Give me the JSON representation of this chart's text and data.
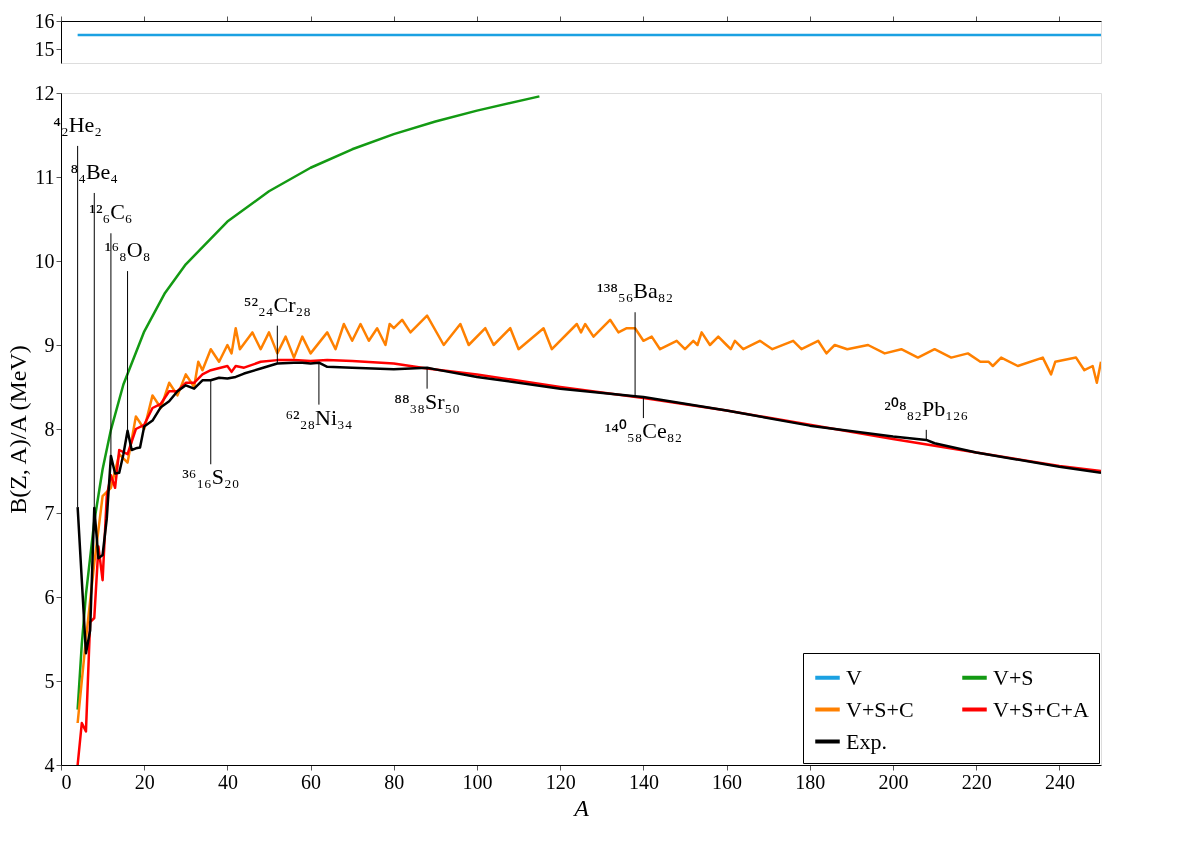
{
  "chart_data": [
    {
      "type": "line",
      "xlim": [
        0,
        250
      ],
      "xticks": [
        0,
        20,
        40,
        60,
        80,
        100,
        120,
        140,
        160,
        180,
        200,
        220,
        240
      ],
      "ylim": [
        14.5,
        16
      ],
      "yticks": [
        15,
        16
      ],
      "tick_labels": "y",
      "grid": false,
      "legend": "bottom right",
      "series": [
        {
          "name": "V",
          "color": "#1ba1e2",
          "x": [
            4,
            250
          ],
          "values": [
            15.5,
            15.5
          ]
        }
      ]
    },
    {
      "type": "line",
      "xlabel": "A",
      "ylabel": "B(Z, A)/A (MeV)",
      "xlim": [
        0,
        250
      ],
      "xticks": [
        0,
        20,
        40,
        60,
        80,
        100,
        120,
        140,
        160,
        180,
        200,
        220,
        240
      ],
      "ylim": [
        4,
        12
      ],
      "yticks": [
        4,
        5,
        6,
        7,
        8,
        9,
        10,
        11,
        12
      ],
      "grid": false,
      "legend": "bottom right",
      "series": [
        {
          "name": "V+S",
          "color": "#139a13",
          "x": [
            4,
            5,
            6,
            8,
            10,
            12,
            15,
            20,
            25,
            30,
            40,
            50,
            60,
            70,
            80,
            90,
            100,
            115
          ],
          "values": [
            4.66,
            5.44,
            6.03,
            6.9,
            7.52,
            7.99,
            8.53,
            9.16,
            9.62,
            9.96,
            10.47,
            10.83,
            11.11,
            11.33,
            11.51,
            11.66,
            11.79,
            11.96
          ]
        },
        {
          "name": "V+S+C",
          "color": "#ff8000",
          "x": [
            4,
            6,
            8,
            10,
            12,
            14,
            16,
            18,
            20,
            22,
            24,
            26,
            28,
            30,
            32,
            33,
            34,
            36,
            38,
            40,
            41,
            42,
            43,
            46,
            48,
            50,
            52,
            54,
            56,
            58,
            60,
            64,
            66,
            68,
            70,
            72,
            74,
            76,
            78,
            79,
            80,
            82,
            84,
            88,
            92,
            96,
            98,
            102,
            104,
            108,
            110,
            116,
            118,
            124,
            125,
            126,
            128,
            132,
            134,
            136,
            138,
            140,
            142,
            144,
            148,
            150,
            152,
            153,
            154,
            156,
            158,
            160,
            161,
            162,
            164,
            168,
            171,
            176,
            178,
            182,
            184,
            185,
            186,
            189,
            194,
            198,
            202,
            206,
            210,
            214,
            218,
            221,
            223,
            224,
            226,
            230,
            236,
            238,
            239,
            244,
            246,
            248,
            249,
            250
          ],
          "values": [
            4.5,
            5.5,
            6.4,
            7.2,
            7.3,
            7.7,
            7.6,
            8.15,
            8.0,
            8.4,
            8.25,
            8.55,
            8.4,
            8.65,
            8.5,
            8.8,
            8.7,
            8.95,
            8.8,
            9.0,
            8.9,
            9.2,
            8.95,
            9.15,
            8.95,
            9.15,
            8.9,
            9.1,
            8.85,
            9.1,
            8.9,
            9.15,
            8.95,
            9.25,
            9.05,
            9.25,
            9.05,
            9.2,
            9.0,
            9.25,
            9.2,
            9.3,
            9.15,
            9.35,
            9.0,
            9.25,
            9.0,
            9.2,
            9.0,
            9.2,
            8.95,
            9.2,
            8.95,
            9.25,
            9.15,
            9.25,
            9.1,
            9.3,
            9.15,
            9.2,
            9.2,
            9.05,
            9.1,
            8.95,
            9.05,
            8.95,
            9.05,
            9.0,
            9.15,
            9.0,
            9.1,
            9.0,
            8.95,
            9.05,
            8.95,
            9.05,
            8.95,
            9.05,
            8.95,
            9.05,
            8.9,
            8.95,
            9.0,
            8.95,
            9.0,
            8.9,
            8.95,
            8.85,
            8.95,
            8.85,
            8.9,
            8.8,
            8.8,
            8.75,
            8.85,
            8.75,
            8.85,
            8.65,
            8.8,
            8.85,
            8.7,
            8.75,
            8.55,
            8.8
          ]
        },
        {
          "name": "V+S+C+A",
          "color": "#ff0000",
          "x": [
            4,
            5,
            6,
            7,
            8,
            9,
            10,
            11,
            12,
            13,
            14,
            16,
            18,
            20,
            22,
            24,
            26,
            28,
            30,
            32,
            34,
            36,
            40,
            41,
            42,
            44,
            48,
            52,
            56,
            60,
            64,
            70,
            80,
            88,
            100,
            120,
            140,
            160,
            180,
            200,
            220,
            240,
            250
          ],
          "values": [
            4.0,
            4.5,
            4.4,
            5.7,
            5.75,
            6.6,
            6.2,
            7.2,
            7.45,
            7.3,
            7.75,
            7.7,
            8.0,
            8.05,
            8.25,
            8.3,
            8.45,
            8.45,
            8.55,
            8.55,
            8.65,
            8.7,
            8.75,
            8.68,
            8.75,
            8.73,
            8.8,
            8.82,
            8.82,
            8.81,
            8.82,
            8.81,
            8.78,
            8.72,
            8.65,
            8.5,
            8.37,
            8.22,
            8.05,
            7.88,
            7.72,
            7.56,
            7.5
          ]
        },
        {
          "name": "Exp.",
          "color": "#000000",
          "x": [
            4,
            6,
            7,
            8,
            9,
            10,
            11,
            12,
            13,
            14,
            15,
            16,
            17,
            18,
            19,
            20,
            22,
            24,
            26,
            28,
            30,
            32,
            34,
            36,
            38,
            40,
            42,
            44,
            48,
            52,
            56,
            58,
            60,
            62,
            64,
            70,
            80,
            88,
            90,
            100,
            120,
            138,
            140,
            160,
            180,
            200,
            208,
            210,
            220,
            240,
            250
          ],
          "values": [
            7.07,
            5.33,
            5.6,
            7.06,
            6.46,
            6.5,
            6.93,
            7.68,
            7.47,
            7.48,
            7.7,
            7.98,
            7.75,
            7.77,
            7.78,
            8.03,
            8.1,
            8.26,
            8.33,
            8.45,
            8.52,
            8.48,
            8.58,
            8.58,
            8.61,
            8.6,
            8.62,
            8.66,
            8.72,
            8.78,
            8.79,
            8.79,
            8.78,
            8.79,
            8.74,
            8.73,
            8.71,
            8.73,
            8.71,
            8.62,
            8.48,
            8.39,
            8.38,
            8.22,
            8.04,
            7.91,
            7.87,
            7.83,
            7.72,
            7.55,
            7.48
          ]
        }
      ],
      "annotations": [
        {
          "text": "⁴₂He₂",
          "x": 4,
          "y": 7.07
        },
        {
          "text": "⁸₄Be₄",
          "x": 8,
          "y": 7.06
        },
        {
          "text": "¹²₆C₆",
          "x": 12,
          "y": 7.68
        },
        {
          "text": "¹⁶₈O₈",
          "x": 16,
          "y": 7.98
        },
        {
          "text": "³⁶₁₆S₂₀",
          "x": 36,
          "y": 8.58
        },
        {
          "text": "⁵²₂₄Cr₂₈",
          "x": 52,
          "y": 8.78
        },
        {
          "text": "⁶²₂₈Ni₃₄",
          "x": 62,
          "y": 8.79
        },
        {
          "text": "⁸⁸₃₈Sr₅₀",
          "x": 88,
          "y": 8.73
        },
        {
          "text": "¹³⁸₅₆Ba₈₂",
          "x": 138,
          "y": 8.39
        },
        {
          "text": "¹⁴⁰₅₈Ce₈₂",
          "x": 140,
          "y": 8.38
        },
        {
          "text": "²⁰⁸₈₂Pb₁₂₆",
          "x": 208,
          "y": 7.87
        }
      ]
    }
  ]
}
